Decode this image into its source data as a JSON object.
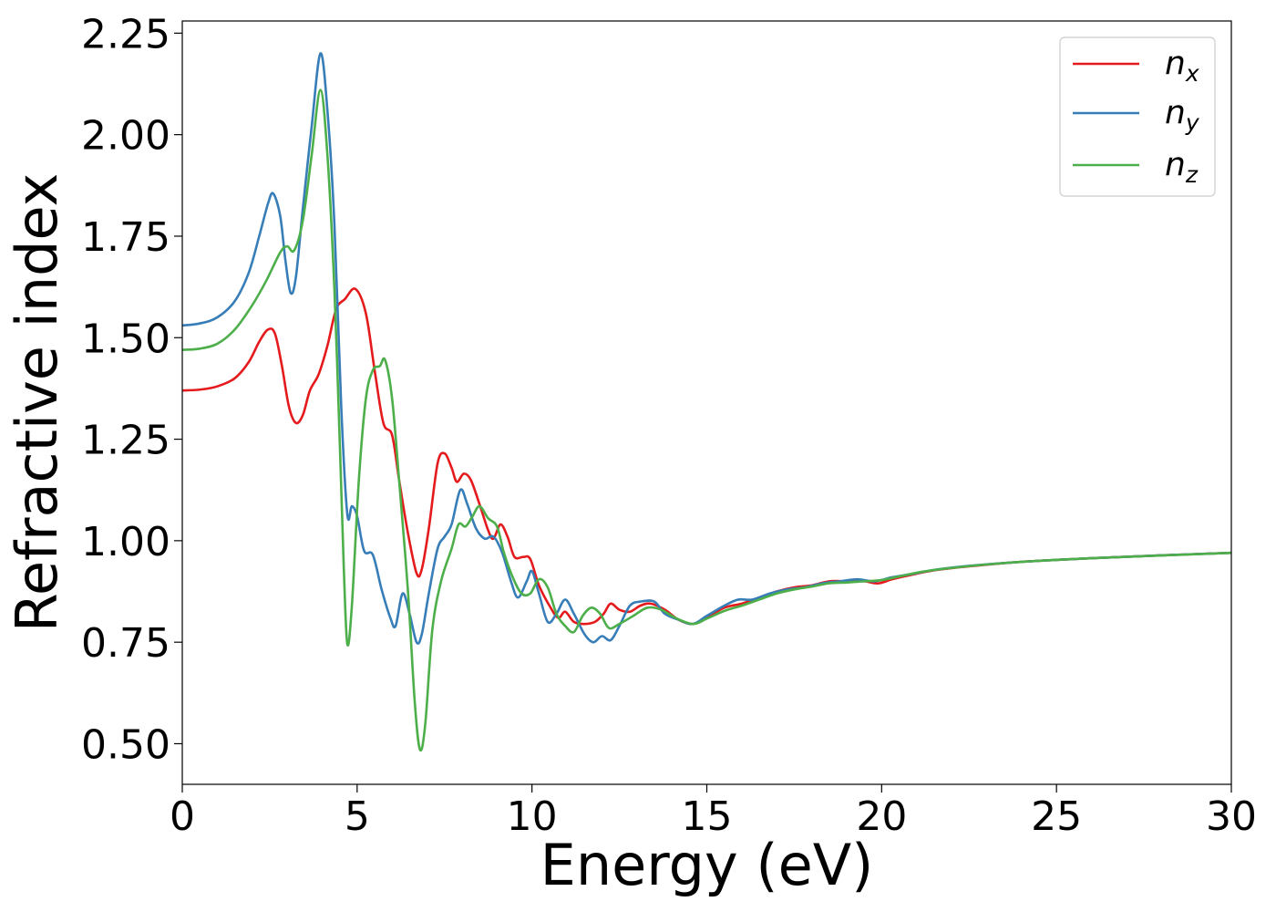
{
  "chart_data": {
    "type": "line",
    "xlabel": "Energy (eV)",
    "ylabel": "Refractive index",
    "xlim": [
      0,
      30
    ],
    "ylim": [
      0.4,
      2.28
    ],
    "xticks": [
      0,
      5,
      10,
      15,
      20,
      25,
      30
    ],
    "xtick_labels": [
      "0",
      "5",
      "10",
      "15",
      "20",
      "25",
      "30"
    ],
    "yticks": [
      0.5,
      0.75,
      1.0,
      1.25,
      1.5,
      1.75,
      2.0,
      2.25
    ],
    "ytick_labels": [
      "0.50",
      "0.75",
      "1.00",
      "1.25",
      "1.50",
      "1.75",
      "2.00",
      "2.25"
    ],
    "grid": false,
    "legend_position": "top-right",
    "series": [
      {
        "name": "n",
        "subscript": "x",
        "color": "#e41a1c",
        "points": [
          [
            0,
            1.37
          ],
          [
            0.5,
            1.372
          ],
          [
            1.0,
            1.38
          ],
          [
            1.5,
            1.4
          ],
          [
            1.9,
            1.44
          ],
          [
            2.2,
            1.49
          ],
          [
            2.45,
            1.52
          ],
          [
            2.65,
            1.51
          ],
          [
            2.85,
            1.43
          ],
          [
            3.05,
            1.33
          ],
          [
            3.25,
            1.29
          ],
          [
            3.45,
            1.31
          ],
          [
            3.65,
            1.37
          ],
          [
            3.9,
            1.41
          ],
          [
            4.15,
            1.48
          ],
          [
            4.4,
            1.57
          ],
          [
            4.65,
            1.595
          ],
          [
            4.95,
            1.62
          ],
          [
            5.25,
            1.56
          ],
          [
            5.5,
            1.42
          ],
          [
            5.75,
            1.29
          ],
          [
            6.0,
            1.26
          ],
          [
            6.2,
            1.15
          ],
          [
            6.45,
            1.02
          ],
          [
            6.7,
            0.92
          ],
          [
            6.85,
            0.93
          ],
          [
            7.05,
            1.03
          ],
          [
            7.3,
            1.19
          ],
          [
            7.5,
            1.215
          ],
          [
            7.7,
            1.18
          ],
          [
            7.85,
            1.145
          ],
          [
            8.05,
            1.165
          ],
          [
            8.25,
            1.15
          ],
          [
            8.5,
            1.09
          ],
          [
            8.75,
            1.025
          ],
          [
            8.9,
            1.005
          ],
          [
            9.1,
            1.04
          ],
          [
            9.3,
            1.01
          ],
          [
            9.5,
            0.96
          ],
          [
            9.75,
            0.96
          ],
          [
            9.95,
            0.955
          ],
          [
            10.2,
            0.89
          ],
          [
            10.5,
            0.84
          ],
          [
            10.75,
            0.81
          ],
          [
            10.95,
            0.825
          ],
          [
            11.2,
            0.8
          ],
          [
            11.5,
            0.795
          ],
          [
            11.8,
            0.8
          ],
          [
            12.05,
            0.82
          ],
          [
            12.25,
            0.845
          ],
          [
            12.5,
            0.83
          ],
          [
            12.8,
            0.825
          ],
          [
            13.1,
            0.84
          ],
          [
            13.4,
            0.845
          ],
          [
            13.8,
            0.83
          ],
          [
            14.2,
            0.805
          ],
          [
            14.6,
            0.795
          ],
          [
            15.0,
            0.81
          ],
          [
            15.5,
            0.835
          ],
          [
            16.0,
            0.845
          ],
          [
            16.5,
            0.86
          ],
          [
            17.0,
            0.875
          ],
          [
            17.5,
            0.885
          ],
          [
            18.0,
            0.89
          ],
          [
            18.5,
            0.9
          ],
          [
            19.0,
            0.9
          ],
          [
            19.5,
            0.9
          ],
          [
            19.9,
            0.895
          ],
          [
            20.3,
            0.905
          ],
          [
            20.8,
            0.915
          ],
          [
            21.5,
            0.927
          ],
          [
            22.5,
            0.937
          ],
          [
            24.0,
            0.948
          ],
          [
            26.0,
            0.957
          ],
          [
            28.0,
            0.964
          ],
          [
            30.0,
            0.97
          ]
        ]
      },
      {
        "name": "n",
        "subscript": "y",
        "color": "#377eb8",
        "points": [
          [
            0,
            1.53
          ],
          [
            0.5,
            1.535
          ],
          [
            1.0,
            1.55
          ],
          [
            1.5,
            1.59
          ],
          [
            1.9,
            1.66
          ],
          [
            2.2,
            1.75
          ],
          [
            2.45,
            1.83
          ],
          [
            2.6,
            1.855
          ],
          [
            2.8,
            1.8
          ],
          [
            2.95,
            1.69
          ],
          [
            3.1,
            1.61
          ],
          [
            3.25,
            1.65
          ],
          [
            3.45,
            1.82
          ],
          [
            3.7,
            2.02
          ],
          [
            3.95,
            2.2
          ],
          [
            4.15,
            2.06
          ],
          [
            4.35,
            1.78
          ],
          [
            4.55,
            1.32
          ],
          [
            4.72,
            1.065
          ],
          [
            4.85,
            1.085
          ],
          [
            5.0,
            1.06
          ],
          [
            5.2,
            0.975
          ],
          [
            5.45,
            0.965
          ],
          [
            5.7,
            0.88
          ],
          [
            5.95,
            0.81
          ],
          [
            6.1,
            0.79
          ],
          [
            6.3,
            0.87
          ],
          [
            6.5,
            0.82
          ],
          [
            6.7,
            0.75
          ],
          [
            6.85,
            0.77
          ],
          [
            7.05,
            0.87
          ],
          [
            7.3,
            0.98
          ],
          [
            7.5,
            1.01
          ],
          [
            7.7,
            1.04
          ],
          [
            7.95,
            1.125
          ],
          [
            8.15,
            1.09
          ],
          [
            8.4,
            1.03
          ],
          [
            8.65,
            1.005
          ],
          [
            8.9,
            1.01
          ],
          [
            9.15,
            0.97
          ],
          [
            9.4,
            0.9
          ],
          [
            9.6,
            0.86
          ],
          [
            9.85,
            0.9
          ],
          [
            10.0,
            0.925
          ],
          [
            10.2,
            0.87
          ],
          [
            10.45,
            0.8
          ],
          [
            10.7,
            0.82
          ],
          [
            10.95,
            0.855
          ],
          [
            11.2,
            0.82
          ],
          [
            11.5,
            0.77
          ],
          [
            11.75,
            0.75
          ],
          [
            12.0,
            0.765
          ],
          [
            12.25,
            0.755
          ],
          [
            12.5,
            0.79
          ],
          [
            12.8,
            0.84
          ],
          [
            13.1,
            0.85
          ],
          [
            13.5,
            0.85
          ],
          [
            13.8,
            0.82
          ],
          [
            14.2,
            0.805
          ],
          [
            14.6,
            0.795
          ],
          [
            15.0,
            0.815
          ],
          [
            15.5,
            0.84
          ],
          [
            15.9,
            0.855
          ],
          [
            16.3,
            0.855
          ],
          [
            16.8,
            0.87
          ],
          [
            17.3,
            0.88
          ],
          [
            17.8,
            0.885
          ],
          [
            18.3,
            0.895
          ],
          [
            18.8,
            0.9
          ],
          [
            19.3,
            0.905
          ],
          [
            19.8,
            0.9
          ],
          [
            20.3,
            0.91
          ],
          [
            20.8,
            0.917
          ],
          [
            21.5,
            0.928
          ],
          [
            22.5,
            0.938
          ],
          [
            24.0,
            0.948
          ],
          [
            26.0,
            0.957
          ],
          [
            28.0,
            0.964
          ],
          [
            30.0,
            0.97
          ]
        ]
      },
      {
        "name": "n",
        "subscript": "z",
        "color": "#4daf4a",
        "points": [
          [
            0,
            1.47
          ],
          [
            0.5,
            1.473
          ],
          [
            1.0,
            1.485
          ],
          [
            1.5,
            1.52
          ],
          [
            2.0,
            1.58
          ],
          [
            2.4,
            1.64
          ],
          [
            2.8,
            1.71
          ],
          [
            3.0,
            1.725
          ],
          [
            3.2,
            1.715
          ],
          [
            3.45,
            1.79
          ],
          [
            3.7,
            1.95
          ],
          [
            3.95,
            2.11
          ],
          [
            4.15,
            1.95
          ],
          [
            4.35,
            1.62
          ],
          [
            4.5,
            1.25
          ],
          [
            4.62,
            0.93
          ],
          [
            4.72,
            0.745
          ],
          [
            4.85,
            0.84
          ],
          [
            5.05,
            1.15
          ],
          [
            5.25,
            1.35
          ],
          [
            5.45,
            1.42
          ],
          [
            5.65,
            1.43
          ],
          [
            5.8,
            1.445
          ],
          [
            6.0,
            1.35
          ],
          [
            6.2,
            1.15
          ],
          [
            6.45,
            0.88
          ],
          [
            6.65,
            0.6
          ],
          [
            6.8,
            0.485
          ],
          [
            6.95,
            0.55
          ],
          [
            7.15,
            0.78
          ],
          [
            7.4,
            0.9
          ],
          [
            7.7,
            0.98
          ],
          [
            7.9,
            1.04
          ],
          [
            8.1,
            1.035
          ],
          [
            8.3,
            1.06
          ],
          [
            8.5,
            1.085
          ],
          [
            8.75,
            1.055
          ],
          [
            9.0,
            1.035
          ],
          [
            9.2,
            0.97
          ],
          [
            9.45,
            0.91
          ],
          [
            9.7,
            0.87
          ],
          [
            9.95,
            0.87
          ],
          [
            10.2,
            0.905
          ],
          [
            10.45,
            0.885
          ],
          [
            10.7,
            0.82
          ],
          [
            10.95,
            0.79
          ],
          [
            11.2,
            0.775
          ],
          [
            11.45,
            0.815
          ],
          [
            11.7,
            0.835
          ],
          [
            11.95,
            0.82
          ],
          [
            12.2,
            0.785
          ],
          [
            12.5,
            0.795
          ],
          [
            12.9,
            0.815
          ],
          [
            13.3,
            0.835
          ],
          [
            13.7,
            0.83
          ],
          [
            14.1,
            0.81
          ],
          [
            14.6,
            0.795
          ],
          [
            15.0,
            0.808
          ],
          [
            15.5,
            0.827
          ],
          [
            16.0,
            0.84
          ],
          [
            16.5,
            0.855
          ],
          [
            17.0,
            0.87
          ],
          [
            17.5,
            0.88
          ],
          [
            18.0,
            0.887
          ],
          [
            18.5,
            0.895
          ],
          [
            19.0,
            0.897
          ],
          [
            19.5,
            0.9
          ],
          [
            20.0,
            0.903
          ],
          [
            20.5,
            0.912
          ],
          [
            21.2,
            0.924
          ],
          [
            22.0,
            0.933
          ],
          [
            23.5,
            0.945
          ],
          [
            25.5,
            0.955
          ],
          [
            27.5,
            0.962
          ],
          [
            30.0,
            0.97
          ]
        ]
      }
    ]
  }
}
